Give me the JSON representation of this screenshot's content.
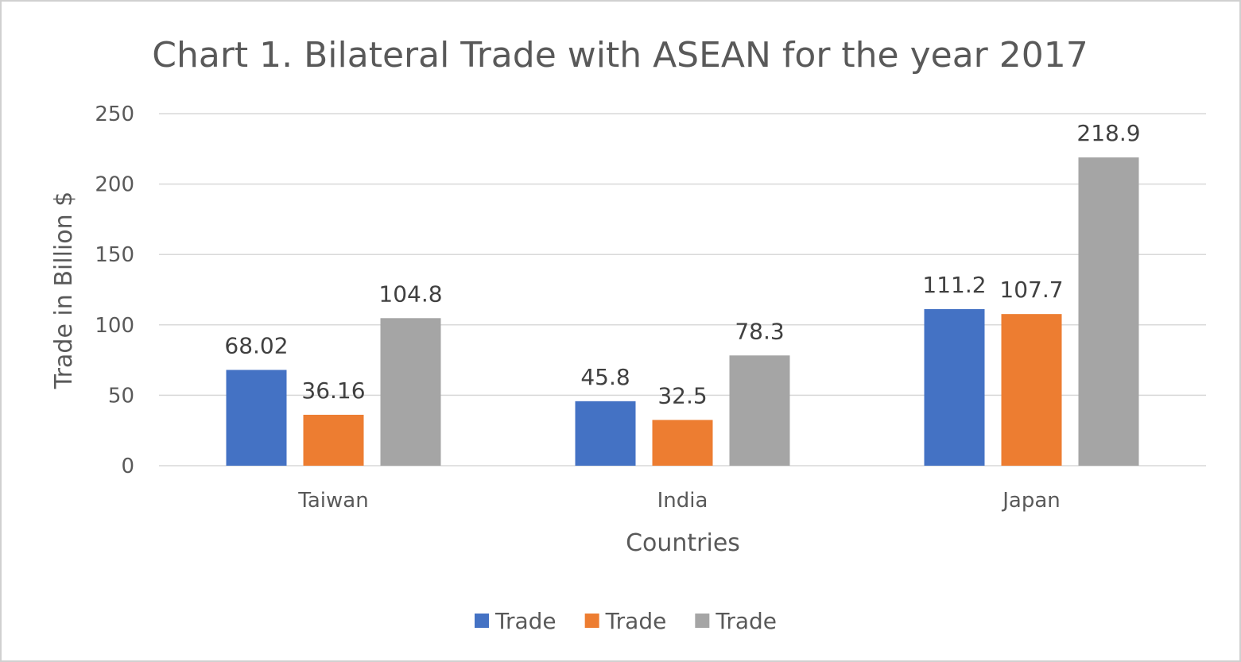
{
  "chart_data": {
    "type": "bar",
    "title": "Chart 1. Bilateral Trade with ASEAN for the year 2017",
    "xlabel": "Countries",
    "ylabel": "Trade in Billion $",
    "categories": [
      "Taiwan",
      "India",
      "Japan"
    ],
    "ylim": [
      0,
      250
    ],
    "yticks": [
      0,
      50,
      100,
      150,
      200,
      250
    ],
    "ytick_labels": [
      "0",
      "50",
      "100",
      "150",
      "200",
      "250"
    ],
    "grid": true,
    "legend_position": "bottom",
    "series": [
      {
        "name": "Trade",
        "color": "#4472c4",
        "values": [
          68.02,
          45.8,
          111.2
        ],
        "labels": [
          "68.02",
          "45.8",
          "111.2"
        ]
      },
      {
        "name": "Trade",
        "color": "#ed7d31",
        "values": [
          36.16,
          32.5,
          107.7
        ],
        "labels": [
          "36.16",
          "32.5",
          "107.7"
        ]
      },
      {
        "name": "Trade",
        "color": "#a5a5a5",
        "values": [
          104.8,
          78.3,
          218.9
        ],
        "labels": [
          "104.8",
          "78.3",
          "218.9"
        ]
      }
    ]
  }
}
